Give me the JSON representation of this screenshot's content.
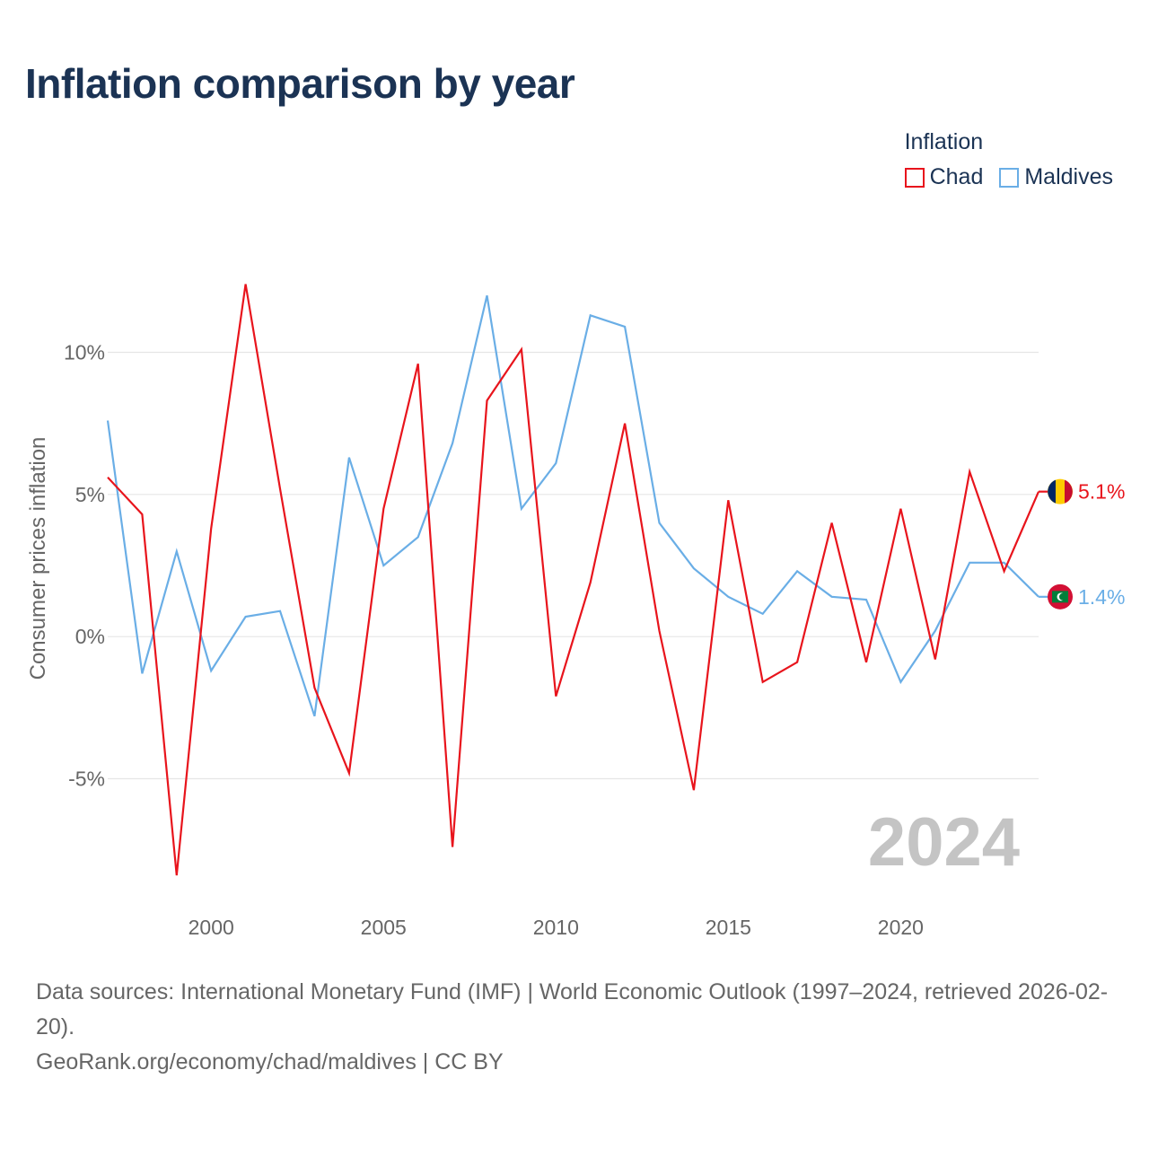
{
  "title": "Inflation comparison by year",
  "legend": {
    "title": "Inflation",
    "items": [
      {
        "label": "Chad",
        "color": "#e8141c"
      },
      {
        "label": "Maldives",
        "color": "#6aaee6"
      }
    ]
  },
  "chart_data": {
    "type": "line",
    "title": "Inflation comparison by year",
    "xlabel": "",
    "ylabel": "Consumer prices inflation",
    "x": [
      1997,
      1998,
      1999,
      2000,
      2001,
      2002,
      2003,
      2004,
      2005,
      2006,
      2007,
      2008,
      2009,
      2010,
      2011,
      2012,
      2013,
      2014,
      2015,
      2016,
      2017,
      2018,
      2019,
      2020,
      2021,
      2022,
      2023,
      2024
    ],
    "xlim": [
      1997,
      2024
    ],
    "ylim": [
      -9.5,
      14.5
    ],
    "x_ticks": [
      2000,
      2005,
      2010,
      2015,
      2020
    ],
    "y_ticks": [
      -5,
      0,
      5,
      10
    ],
    "y_tick_labels": [
      "-5%",
      "0%",
      "5%",
      "10%"
    ],
    "grid": true,
    "watermark_year": "2024",
    "series": [
      {
        "name": "Chad",
        "color": "#e8141c",
        "end_label": "5.1%",
        "values": [
          5.6,
          4.3,
          -8.4,
          3.8,
          12.4,
          5.2,
          -1.8,
          -4.8,
          4.5,
          9.6,
          -7.4,
          8.3,
          10.1,
          -2.1,
          1.9,
          7.5,
          0.2,
          -5.4,
          4.8,
          -1.6,
          -0.9,
          4.0,
          -0.9,
          4.5,
          -0.8,
          5.8,
          2.3,
          5.1
        ]
      },
      {
        "name": "Maldives",
        "color": "#6aaee6",
        "end_label": "1.4%",
        "values": [
          7.6,
          -1.3,
          3.0,
          -1.2,
          0.7,
          0.9,
          -2.8,
          6.3,
          2.5,
          3.5,
          6.8,
          12.0,
          4.5,
          6.1,
          11.3,
          10.9,
          4.0,
          2.4,
          1.4,
          0.8,
          2.3,
          1.4,
          1.3,
          -1.6,
          0.2,
          2.6,
          2.6,
          1.4
        ]
      }
    ]
  },
  "footer": {
    "sources": "Data sources: International Monetary Fund (IMF) | World Economic Outlook (1997–2024, retrieved 2026-02-20).",
    "credit": "GeoRank.org/economy/chad/maldives | CC BY"
  }
}
